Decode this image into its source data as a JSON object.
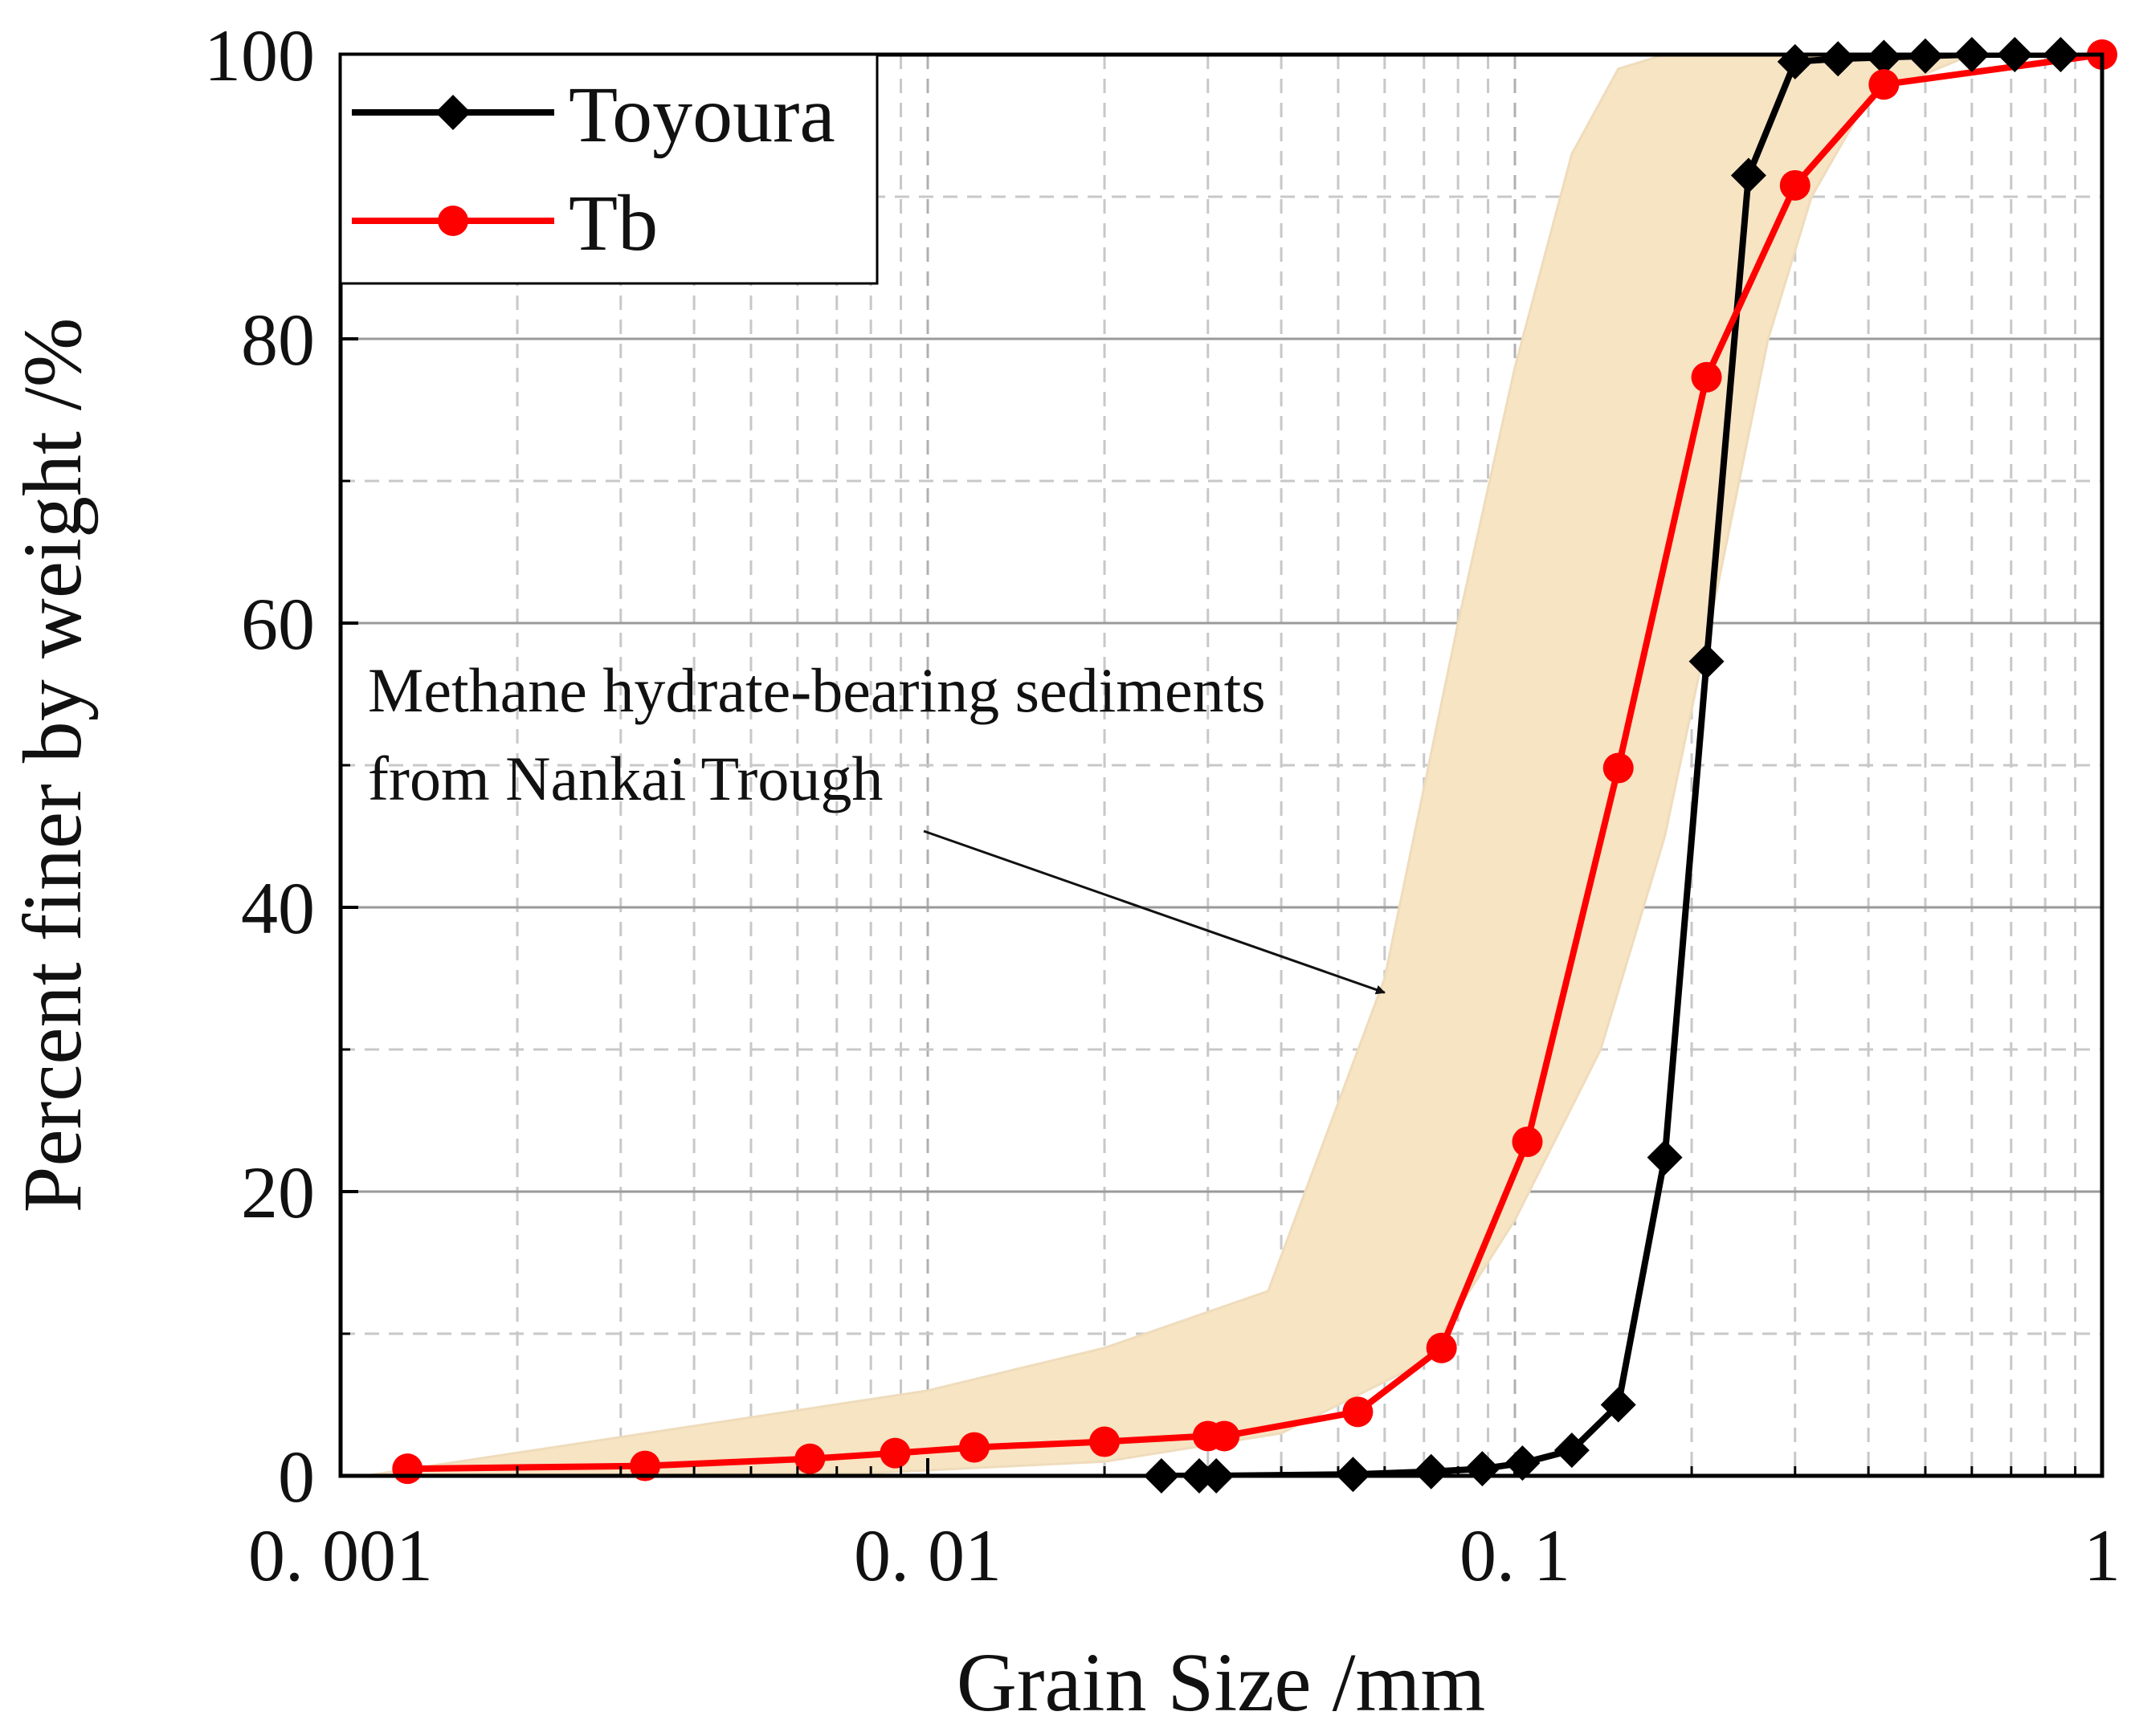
{
  "chart_data": {
    "type": "line",
    "title": "",
    "xlabel": "Grain Size /mm",
    "ylabel": "Percent finer by weight /%",
    "xscale": "log",
    "xlim": [
      0.001,
      1
    ],
    "ylim": [
      0,
      100
    ],
    "x_ticks": [
      0.001,
      0.01,
      0.1,
      1
    ],
    "x_tick_labels": [
      "0. 001",
      "0. 01",
      "0. 1",
      "1"
    ],
    "y_ticks": [
      0,
      20,
      40,
      60,
      80,
      100
    ],
    "y_tick_labels": [
      "0",
      "20",
      "40",
      "60",
      "80",
      "100"
    ],
    "grid": true,
    "legend_position": "top-left",
    "series": [
      {
        "name": "Toyoura",
        "color": "#000000",
        "marker": "diamond",
        "x": [
          0.025,
          0.029,
          0.031,
          0.053,
          0.072,
          0.088,
          0.103,
          0.125,
          0.15,
          0.18,
          0.212,
          0.25,
          0.3,
          0.355,
          0.425,
          0.5,
          0.6,
          0.71,
          0.85
        ],
        "y": [
          0,
          0,
          0,
          0.1,
          0.3,
          0.5,
          0.9,
          1.8,
          5,
          22.4,
          57.3,
          91.5,
          99.5,
          99.7,
          99.8,
          99.9,
          100,
          100,
          100
        ]
      },
      {
        "name": "Tb",
        "color": "#ff0000",
        "marker": "circle",
        "x": [
          0.0013,
          0.0033,
          0.0063,
          0.0088,
          0.012,
          0.02,
          0.03,
          0.032,
          0.054,
          0.075,
          0.105,
          0.15,
          0.212,
          0.3,
          0.425,
          1.0
        ],
        "y": [
          0.5,
          0.7,
          1.2,
          1.6,
          2.0,
          2.4,
          2.8,
          2.8,
          4.5,
          9.0,
          23.5,
          49.8,
          77.3,
          90.8,
          97.9,
          100
        ]
      }
    ],
    "band": {
      "name": "Methane hydrate-bearing sediments from Nankai Trough",
      "color": "#f7e4c3",
      "upper": {
        "x": [
          0.0011,
          0.01,
          0.02,
          0.038,
          0.06,
          0.08,
          0.1,
          0.125,
          0.15,
          0.18,
          0.22,
          0.3
        ],
        "y": [
          0,
          6,
          9,
          13,
          35,
          60,
          78,
          93,
          99,
          100,
          100,
          100
        ]
      },
      "lower": {
        "x": [
          0.0011,
          0.008,
          0.02,
          0.04,
          0.07,
          0.1,
          0.14,
          0.18,
          0.22,
          0.27,
          0.32,
          0.4,
          0.6
        ],
        "y": [
          0,
          0.2,
          1,
          3,
          8,
          18,
          30,
          45,
          62,
          80,
          90,
          97,
          100
        ]
      }
    },
    "annotations": [
      {
        "line1": "Methane hydrate-bearing sediments",
        "line2": "from Nankai Trough",
        "points_to": {
          "x": 0.06,
          "y": 34
        }
      }
    ]
  }
}
